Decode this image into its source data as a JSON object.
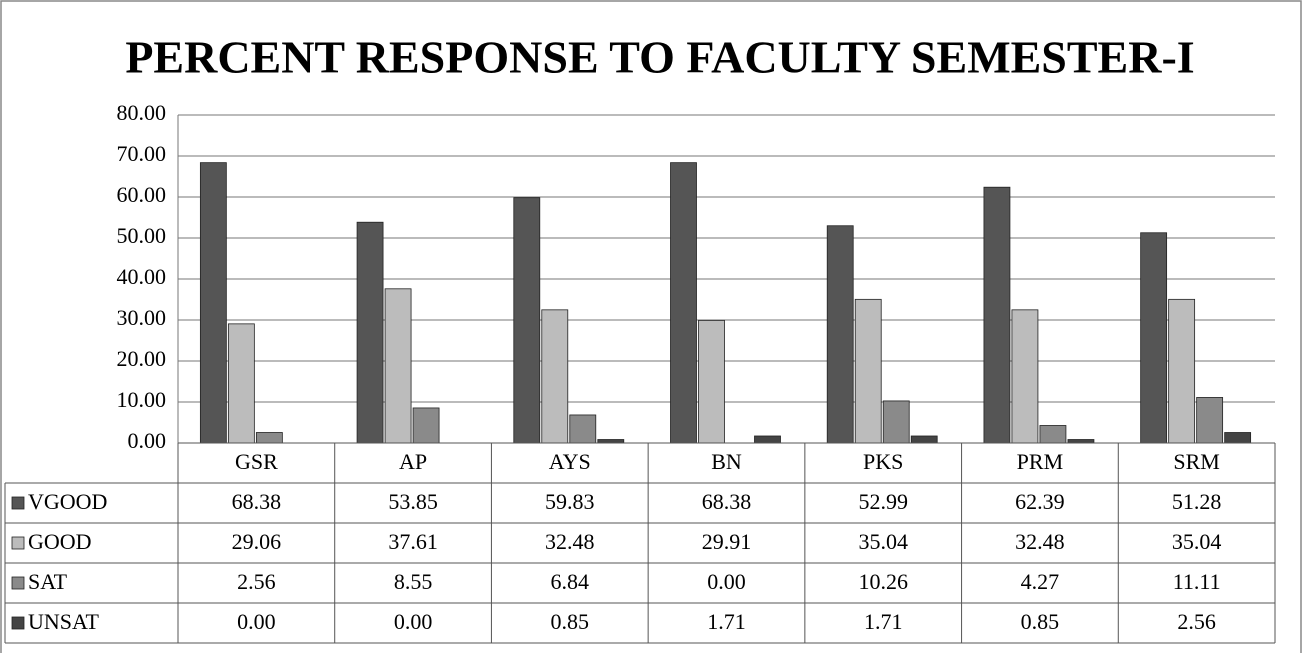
{
  "chart_data": {
    "type": "bar",
    "title": "PERCENT RESPONSE TO FACULTY SEMESTER-I",
    "categories": [
      "GSR",
      "AP",
      "AYS",
      "BN",
      "PKS",
      "PRM",
      "SRM"
    ],
    "series": [
      {
        "name": "VGOOD",
        "color": "#555555",
        "values": [
          68.38,
          53.85,
          59.83,
          68.38,
          52.99,
          62.39,
          51.28
        ],
        "value_labels": [
          "68.38",
          "53.85",
          "59.83",
          "68.38",
          "52.99",
          "62.39",
          "51.28"
        ]
      },
      {
        "name": "GOOD",
        "color": "#bcbcbc",
        "values": [
          29.06,
          37.61,
          32.48,
          29.91,
          35.04,
          32.48,
          35.04
        ],
        "value_labels": [
          "29.06",
          "37.61",
          "32.48",
          "29.91",
          "35.04",
          "32.48",
          "35.04"
        ]
      },
      {
        "name": "SAT",
        "color": "#8a8a8a",
        "values": [
          2.56,
          8.55,
          6.84,
          0,
          10.26,
          4.27,
          11.11
        ],
        "value_labels": [
          "2.56",
          "8.55",
          "6.84",
          "0.00",
          "10.26",
          "4.27",
          "11.11"
        ]
      },
      {
        "name": "UNSAT",
        "color": "#444444",
        "values": [
          0,
          0,
          0.85,
          1.71,
          1.71,
          0.85,
          2.56
        ],
        "value_labels": [
          "0.00",
          "0.00",
          "0.85",
          "1.71",
          "1.71",
          "0.85",
          "2.56"
        ]
      }
    ],
    "ylim": [
      0,
      80
    ],
    "yticks": [
      {
        "value": 0,
        "label": "0.00"
      },
      {
        "value": 10,
        "label": "10.00"
      },
      {
        "value": 20,
        "label": "20.00"
      },
      {
        "value": 30,
        "label": "30.00"
      },
      {
        "value": 40,
        "label": "40.00"
      },
      {
        "value": 50,
        "label": "50.00"
      },
      {
        "value": 60,
        "label": "60.00"
      },
      {
        "value": 70,
        "label": "70.00"
      },
      {
        "value": 80,
        "label": "80.00"
      }
    ],
    "grid": true
  }
}
